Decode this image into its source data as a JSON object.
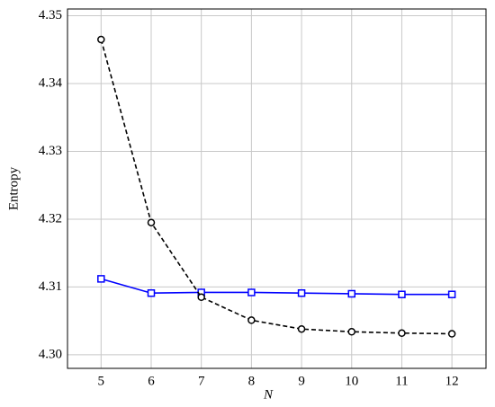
{
  "chart_data": {
    "type": "line",
    "x_label": "N",
    "y_label": "Entropy",
    "x": [
      5,
      6,
      7,
      8,
      9,
      10,
      11,
      12
    ],
    "series": [
      {
        "color": "#0000ff",
        "marker": "square",
        "dash": "solid",
        "values": [
          4.3112,
          4.3091,
          4.3092,
          4.3092,
          4.3091,
          4.309,
          4.3089,
          4.3089
        ]
      },
      {
        "color": "#000000",
        "marker": "circle",
        "dash": "dashed",
        "values": [
          4.3465,
          4.3195,
          4.3085,
          4.3051,
          4.3038,
          4.3034,
          4.3032,
          4.3031
        ]
      }
    ],
    "xlim": [
      4.33,
      12.68
    ],
    "ylim": [
      4.298,
      4.351
    ],
    "xticks": [
      5,
      6,
      7,
      8,
      9,
      10,
      11,
      12
    ],
    "yticks": [
      {
        "value": 4.3,
        "label": "4.30"
      },
      4.31,
      4.32,
      4.33,
      4.34,
      4.35
    ],
    "grid": true
  }
}
